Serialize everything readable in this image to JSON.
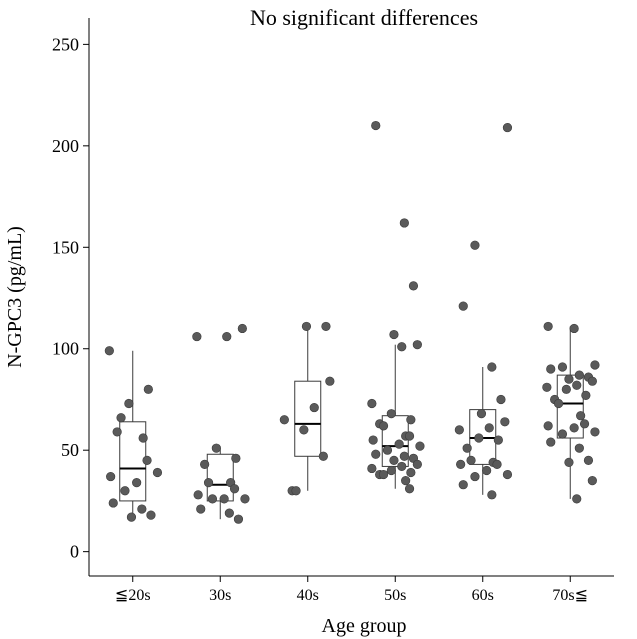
{
  "chart_data": {
    "type": "box",
    "title": "No significant differences",
    "xlabel": "Age group",
    "ylabel": "N-GPC3 (pg/mL)",
    "ylim": [
      -12,
      263
    ],
    "yticks": [
      0,
      50,
      100,
      150,
      200,
      250
    ],
    "categories": [
      "≦20s",
      "30s",
      "40s",
      "50s",
      "60s",
      "70s≦"
    ],
    "boxes": [
      {
        "category": "≦20s",
        "whisker_low": 17,
        "q1": 25,
        "median": 41,
        "q3": 64,
        "whisker_high": 99
      },
      {
        "category": "30s",
        "whisker_low": 16,
        "q1": 25,
        "median": 33,
        "q3": 48,
        "whisker_high": 51
      },
      {
        "category": "40s",
        "whisker_low": 30,
        "q1": 47,
        "median": 63,
        "q3": 84,
        "whisker_high": 111
      },
      {
        "category": "50s",
        "whisker_low": 31,
        "q1": 42,
        "median": 52,
        "q3": 67,
        "whisker_high": 102
      },
      {
        "category": "60s",
        "whisker_low": 28,
        "q1": 43,
        "median": 56,
        "q3": 70,
        "whisker_high": 91
      },
      {
        "category": "70s≦",
        "whisker_low": 26,
        "q1": 56,
        "median": 73,
        "q3": 87,
        "whisker_high": 111
      }
    ],
    "points": [
      {
        "category": "≦20s",
        "values": [
          99,
          73,
          80,
          59,
          66,
          56,
          45,
          37,
          34,
          39,
          30,
          24,
          21,
          18,
          17
        ]
      },
      {
        "category": "30s",
        "values": [
          110,
          106,
          106,
          51,
          46,
          43,
          34,
          34,
          31,
          28,
          26,
          26,
          26,
          21,
          19,
          16
        ]
      },
      {
        "category": "40s",
        "values": [
          111,
          111,
          84,
          71,
          65,
          60,
          47,
          30,
          30
        ]
      },
      {
        "category": "50s",
        "values": [
          210,
          162,
          131,
          107,
          102,
          101,
          73,
          68,
          65,
          63,
          62,
          57,
          57,
          55,
          53,
          52,
          50,
          48,
          47,
          46,
          45,
          43,
          42,
          41,
          40,
          39,
          38,
          38,
          35,
          31
        ]
      },
      {
        "category": "60s",
        "values": [
          209,
          151,
          121,
          91,
          75,
          68,
          64,
          61,
          60,
          56,
          55,
          51,
          45,
          44,
          43,
          43,
          40,
          38,
          37,
          33,
          28
        ]
      },
      {
        "category": "70s≦",
        "values": [
          111,
          110,
          92,
          91,
          90,
          87,
          86,
          85,
          84,
          82,
          81,
          80,
          77,
          75,
          73,
          67,
          63,
          62,
          61,
          59,
          58,
          54,
          51,
          45,
          44,
          35,
          26
        ]
      }
    ],
    "point_color": "#5a5a5a",
    "box_color": "#3a3a3a",
    "legend": "none",
    "grid": false
  }
}
